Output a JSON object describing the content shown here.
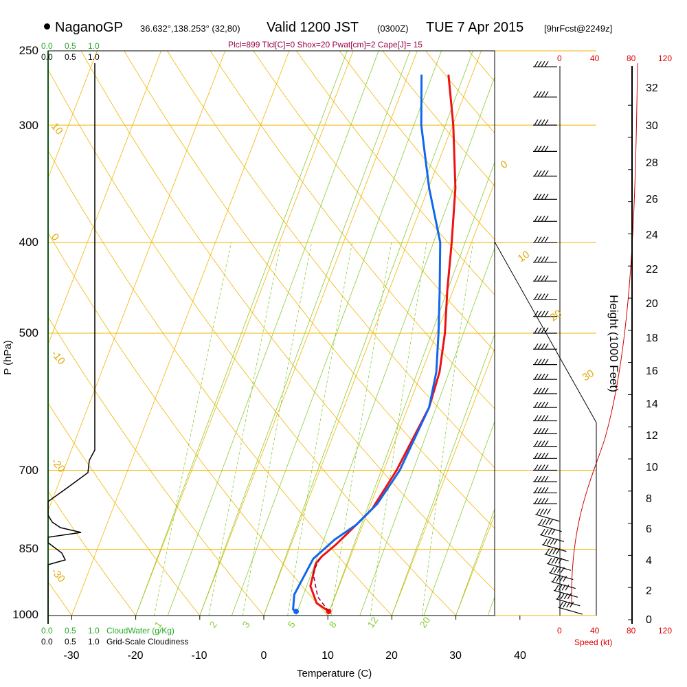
{
  "header": {
    "site_name": "NaganoGP",
    "coords": "36.632°,138.253° (32,80)",
    "valid": "Valid 1200 JST",
    "utc": "(0300Z)",
    "date": "TUE 7 Apr 2015",
    "forecast": "[9hrFcst@2249z]",
    "indices": "Plcl=899 Tlcl[C]=0 Shox=20 Pwat[cm]=2 Cape[J]= 15"
  },
  "colors": {
    "temperature": "#ee1111",
    "dewpoint": "#1166ee",
    "isobar": "#f2b400",
    "mixing_ratio": "#88cc33",
    "cloudwater": "#22aa22",
    "wind_speed": "#cc0000"
  },
  "chart_data": {
    "type": "line",
    "title": "Valid 1200 JST (0300Z) TUE 7 Apr 2015",
    "xlabel": "Temperature (C)",
    "ylabel": "P (hPa)",
    "height_axis_label": "Height (1000 Feet)",
    "x_ticks": [
      -30,
      -20,
      -10,
      0,
      10,
      20,
      30,
      40
    ],
    "pressure_ticks": [
      250,
      300,
      400,
      500,
      700,
      850,
      1000
    ],
    "height_ticks": [
      0,
      2,
      4,
      6,
      8,
      10,
      12,
      14,
      16,
      18,
      20,
      22,
      24,
      26,
      28,
      30,
      32
    ],
    "isotherm_labels": [
      "10",
      "0",
      "-10",
      "-20",
      "-30",
      "0",
      "10",
      "20",
      "30"
    ],
    "mixing_ratio_labels": [
      "1",
      "2",
      "3",
      "5",
      "8",
      "12",
      "20"
    ],
    "cloudwater_ticks": [
      "0.0",
      "0.5",
      "1.0"
    ],
    "cloudwater_label": "CloudWater (g/Kg)",
    "cloudiness_ticks": [
      "0.0",
      "0.5",
      "1.0"
    ],
    "cloudiness_label": "Grid-Scale Cloudiness",
    "wind_speed_ticks": [
      "0",
      "40",
      "80",
      "120"
    ],
    "wind_speed_label": "Speed (kt)",
    "series": [
      {
        "name": "Temperature",
        "points": [
          [
            9.9,
            990
          ],
          [
            7.5,
            970
          ],
          [
            5.5,
            930
          ],
          [
            5,
            880
          ],
          [
            5.5,
            865
          ],
          [
            7,
            840
          ],
          [
            9,
            800
          ],
          [
            10.5,
            770
          ],
          [
            12,
            700
          ],
          [
            13.3,
            600
          ],
          [
            12.8,
            550
          ],
          [
            11.3,
            500
          ],
          [
            9.1,
            450
          ],
          [
            6.9,
            400
          ],
          [
            4.2,
            350
          ],
          [
            0.1,
            300
          ],
          [
            -3.7,
            265
          ]
        ]
      },
      {
        "name": "Dewpoint",
        "points": [
          [
            4.8,
            990
          ],
          [
            4.2,
            985
          ],
          [
            3.5,
            950
          ],
          [
            4.3,
            870
          ],
          [
            6.5,
            830
          ],
          [
            9,
            800
          ],
          [
            11,
            760
          ],
          [
            12.5,
            700
          ],
          [
            13.3,
            600
          ],
          [
            12.3,
            550
          ],
          [
            10.3,
            500
          ],
          [
            7.9,
            450
          ],
          [
            5.1,
            400
          ],
          [
            0.1,
            350
          ],
          [
            -4.9,
            300
          ],
          [
            -7.9,
            265
          ]
        ]
      }
    ],
    "wind_barbs_pressure": [
      260,
      280,
      300,
      320,
      340,
      360,
      380,
      400,
      420,
      440,
      460,
      480,
      500,
      520,
      540,
      560,
      580,
      600,
      620,
      640,
      660,
      680,
      700,
      720,
      740,
      760,
      780,
      800,
      820,
      840,
      860,
      880,
      900,
      920,
      940,
      960,
      980
    ]
  }
}
